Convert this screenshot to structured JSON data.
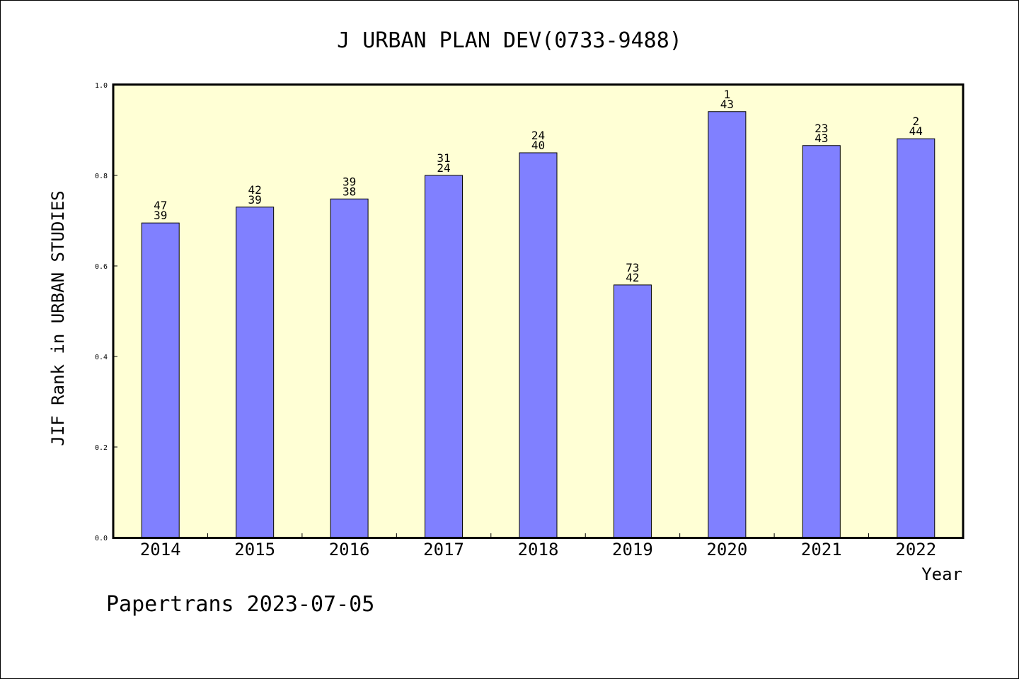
{
  "chart_data": {
    "type": "bar",
    "title": "J URBAN PLAN DEV(0733-9488)",
    "xlabel": "Year",
    "ylabel": "JIF Rank in URBAN STUDIES",
    "ylim": [
      0,
      1.0
    ],
    "yticks": [
      "0.0",
      "0.2",
      "0.4",
      "0.6",
      "0.8",
      "1.0"
    ],
    "categories": [
      "2014",
      "2015",
      "2016",
      "2017",
      "2018",
      "2019",
      "2020",
      "2021",
      "2022"
    ],
    "values": [
      0.695,
      0.73,
      0.748,
      0.8,
      0.85,
      0.558,
      0.941,
      0.866,
      0.881
    ],
    "label_top": [
      "47",
      "42",
      "39",
      "31",
      "24",
      "73",
      "1",
      "23",
      "2"
    ],
    "label_bottom": [
      "39",
      "39",
      "38",
      "24",
      "40",
      "42",
      "43",
      "43",
      "44"
    ],
    "bar_color": "#8080ff",
    "background_color": "#ffffd5",
    "grid": false
  },
  "footer": "Papertrans 2023-07-05"
}
